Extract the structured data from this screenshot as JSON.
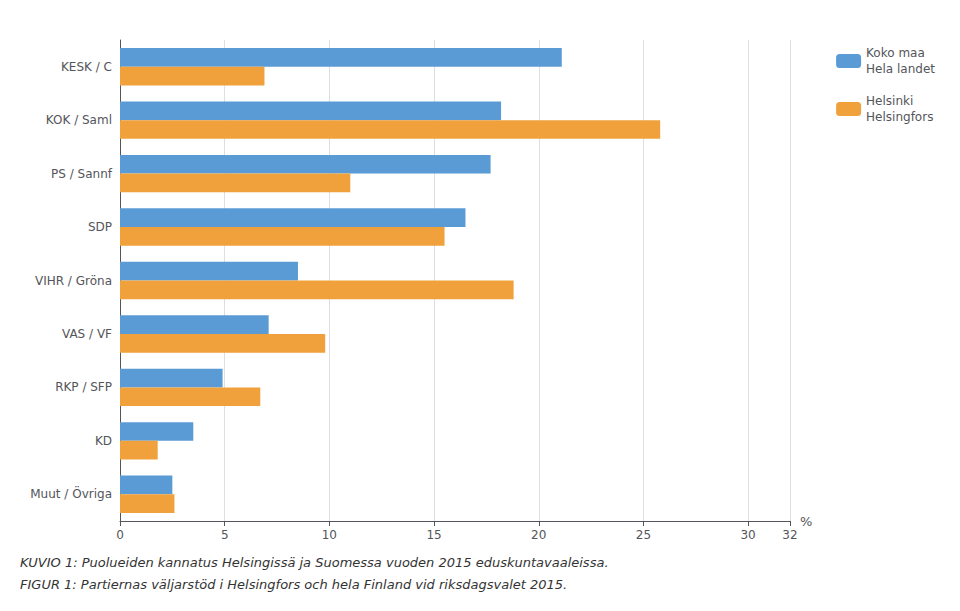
{
  "chart_data": {
    "type": "bar",
    "orientation": "horizontal",
    "categories": [
      "KESK / C",
      "KOK / Saml",
      "PS / Sannf",
      "SDP",
      "VIHR / Gröna",
      "VAS / VF",
      "RKP / SFP",
      "KD",
      "Muut / Övriga"
    ],
    "series": [
      {
        "name": "Koko maa\nHela landet",
        "color": "#5b9bd5",
        "values": [
          21.1,
          18.2,
          17.7,
          16.5,
          8.5,
          7.1,
          4.9,
          3.5,
          2.5
        ]
      },
      {
        "name": "Helsinki\nHelsingfors",
        "color": "#f0a13c",
        "values": [
          6.9,
          25.8,
          11.0,
          15.5,
          18.8,
          9.8,
          6.7,
          1.8,
          2.6
        ]
      }
    ],
    "xlabel": "%",
    "xlim": [
      0,
      32
    ],
    "xticks": [
      0,
      5,
      10,
      15,
      20,
      25,
      30
    ],
    "grid": true,
    "legend": "upper right",
    "annotations": [
      "KUVIO 1: Puolueiden kannatus Helsingissä ja Suomessa vuoden 2015 eduskuntavaaleissa.",
      "FIGUR 1: Partiernas väljarstöd i Helsingfors och hela Finland vid riksdagsvalet 2015."
    ]
  }
}
